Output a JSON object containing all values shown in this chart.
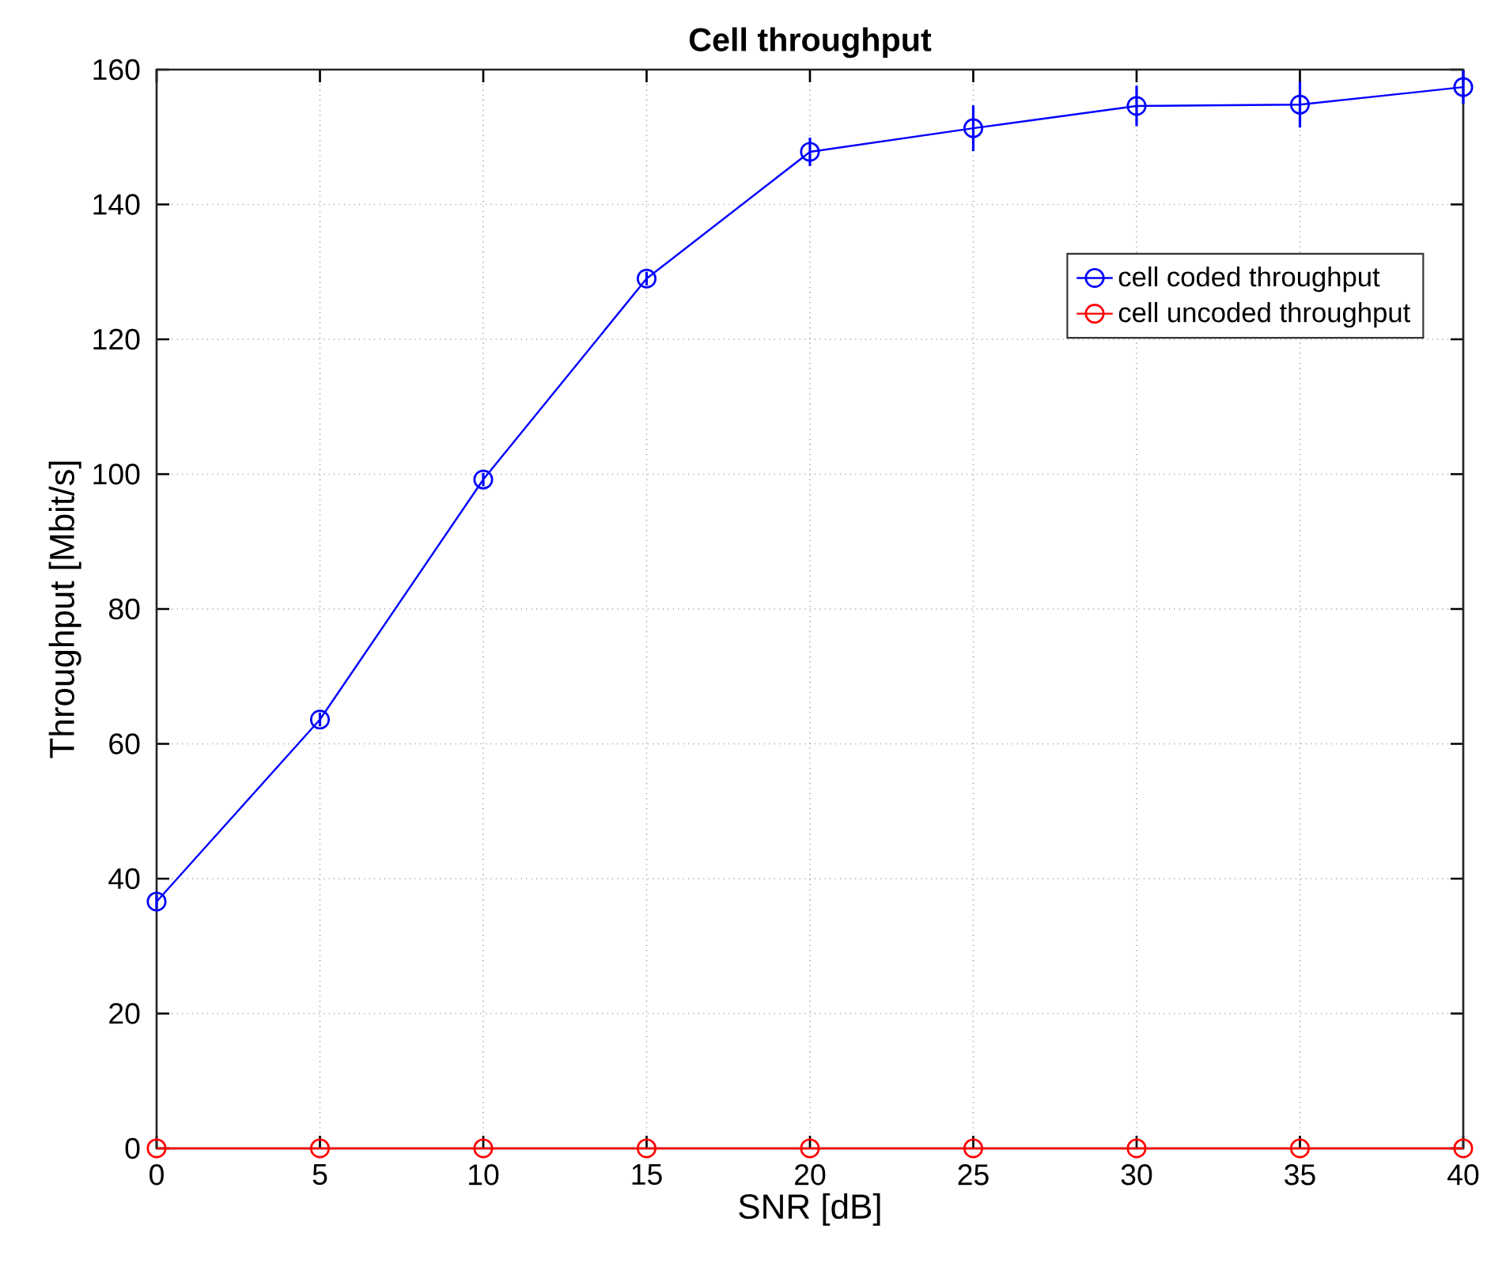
{
  "chart_data": {
    "type": "line",
    "title": "Cell throughput",
    "xlabel": "SNR [dB]",
    "ylabel": "Throughput [Mbit/s]",
    "x": [
      0,
      5,
      10,
      15,
      20,
      25,
      30,
      35,
      40
    ],
    "series": [
      {
        "name": "cell coded throughput",
        "color": "#0000ff",
        "values": [
          36.6,
          63.6,
          99.2,
          129,
          147.8,
          151.3,
          154.6,
          154.8,
          157.4
        ],
        "errors": [
          1,
          1,
          1,
          1,
          2.1,
          3.4,
          3,
          3.4,
          2.5
        ]
      },
      {
        "name": "cell uncoded throughput",
        "color": "#ff0000",
        "values": [
          0,
          0,
          0,
          0,
          0,
          0,
          0,
          0,
          0
        ]
      }
    ],
    "xlim": [
      0,
      40
    ],
    "ylim": [
      0,
      160
    ],
    "xticks": [
      0,
      5,
      10,
      15,
      20,
      25,
      30,
      35,
      40
    ],
    "yticks": [
      0,
      20,
      40,
      60,
      80,
      100,
      120,
      140,
      160
    ],
    "grid": true,
    "legend": "top right",
    "marker": "circle",
    "line_style": "solid"
  }
}
